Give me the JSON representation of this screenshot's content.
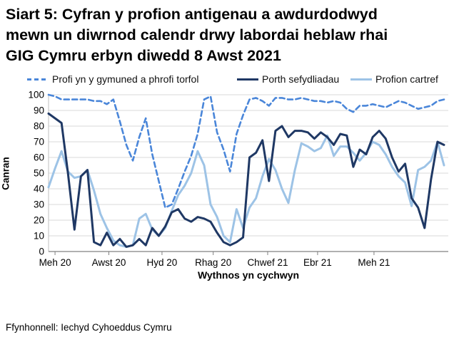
{
  "title": {
    "lines": [
      "Siart 5: Cyfran y profion antigenau a awdurdodwyd",
      "mewn un diwrnod calendr drwy labordai heblaw rhai",
      "GIG Cymru erbyn diwedd 8 Awst 2021"
    ]
  },
  "source": "Ffynhonnell: Iechyd Cyhoeddus Cymru",
  "colors": {
    "community_line": "#4a86d9",
    "portal_line": "#1f3864",
    "home_line": "#9dc3e6",
    "gridline": "#d9d9d9",
    "axis": "#808080",
    "text": "#000000"
  },
  "chart_data": {
    "type": "line",
    "title": "Siart 5: Cyfran y profion antigenau a awdurdodwyd mewn un diwrnod calendr drwy labordai heblaw rhai GIG Cymru erbyn diwedd 8 Awst 2021",
    "xlabel": "Wythnos yn cychwyn",
    "ylabel": "Canran",
    "ylim": [
      0,
      100
    ],
    "y_ticks": [
      0,
      10,
      20,
      30,
      40,
      50,
      60,
      70,
      80,
      90,
      100
    ],
    "grid": "horizontal",
    "legend_position": "top",
    "x_tick_labels": [
      "Meh 20",
      "Awst 20",
      "Hyd 20",
      "Rhag 20",
      "Chwef 21",
      "Ebr 21",
      "Meh 21"
    ],
    "x_tick_weeks": [
      1,
      9.3,
      17.5,
      25.4,
      33.8,
      41.5,
      50.2
    ],
    "series": [
      {
        "id": "community",
        "name": "Profi yn y gymuned a phrofi torfol",
        "color": "#4a86d9",
        "dash": true,
        "values": [
          100,
          99,
          97,
          97,
          97,
          97,
          97,
          96,
          96,
          94,
          97,
          83,
          68,
          58,
          73,
          85,
          62,
          45,
          28,
          30,
          40,
          51,
          61,
          75,
          97,
          99,
          76,
          65,
          51,
          75,
          87,
          97,
          98,
          96,
          93,
          98,
          98,
          97,
          97,
          98,
          97,
          96,
          96,
          95,
          96,
          95,
          91,
          89,
          93,
          93,
          94,
          93,
          92,
          94,
          96,
          95,
          93,
          91,
          92,
          93,
          96,
          97
        ]
      },
      {
        "id": "portal",
        "name": "Porth sefydliadau",
        "color": "#1f3864",
        "dash": false,
        "values": [
          88,
          85,
          82,
          50,
          14,
          48,
          52,
          6,
          4,
          12,
          4,
          8,
          3,
          4,
          8,
          4,
          15,
          10,
          16,
          25,
          27,
          21,
          19,
          22,
          21,
          19,
          12,
          6,
          4,
          6,
          9,
          60,
          63,
          71,
          45,
          77,
          80,
          73,
          77,
          77,
          76,
          72,
          76,
          73,
          68,
          75,
          74,
          54,
          65,
          62,
          73,
          77,
          72,
          60,
          51,
          56,
          34,
          28,
          15,
          46,
          70,
          68
        ]
      },
      {
        "id": "home",
        "name": "Profion cartref",
        "color": "#9dc3e6",
        "dash": false,
        "values": [
          41,
          53,
          64,
          51,
          47,
          48,
          52,
          39,
          24,
          15,
          7,
          4,
          3,
          4,
          21,
          24,
          14,
          10,
          15,
          26,
          36,
          42,
          50,
          64,
          55,
          30,
          22,
          10,
          6,
          27,
          15,
          28,
          34,
          48,
          59,
          52,
          40,
          31,
          52,
          69,
          67,
          64,
          66,
          74,
          61,
          67,
          67,
          63,
          58,
          63,
          70,
          68,
          62,
          54,
          48,
          44,
          29,
          52,
          54,
          58,
          70,
          55
        ]
      }
    ]
  }
}
